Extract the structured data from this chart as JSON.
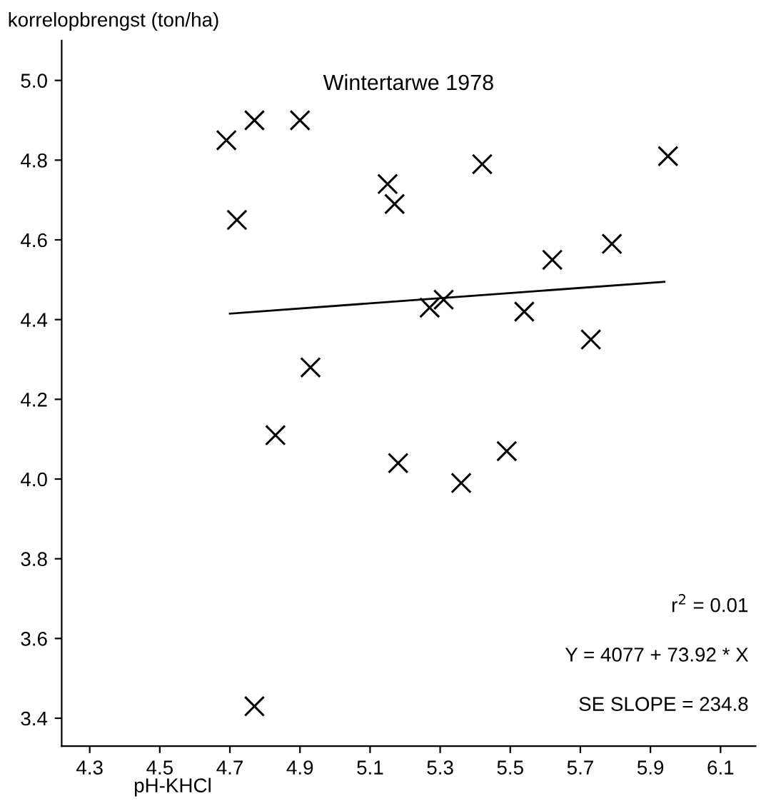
{
  "chart_data": {
    "type": "scatter",
    "title": "Wintertarwe 1978",
    "xlabel": "pH-KHCl",
    "ylabel": "korrelopbrengst (ton/ha)",
    "annotations": [
      "r$^{2}$ = 0.01",
      "Y = 4077 + 73.92 * X",
      "SE SLOPE = 234.8"
    ],
    "series": [
      {
        "type": "scatter",
        "color": "#000000",
        "marker": "cross",
        "x": [
          4.69,
          4.77,
          4.9,
          4.72,
          5.15,
          5.17,
          5.42,
          5.95,
          5.62,
          5.79,
          5.27,
          5.31,
          5.54,
          5.73,
          4.93,
          4.83,
          5.18,
          5.36,
          5.49,
          4.77
        ],
        "values": [
          4.85,
          4.9,
          4.9,
          4.65,
          4.74,
          4.69,
          4.79,
          4.81,
          4.55,
          4.59,
          4.43,
          4.45,
          4.42,
          4.35,
          4.28,
          4.11,
          4.04,
          3.99,
          4.07,
          3.43
        ]
      },
      {
        "type": "line",
        "color": "#000000",
        "marker": "none",
        "line_style": "solid",
        "x": [
          4.7,
          5.94
        ],
        "values": [
          4.415,
          4.495
        ]
      }
    ],
    "xlim": [
      4.22,
      6.2
    ],
    "ylim": [
      3.33,
      5.1
    ],
    "xticks": [
      4.3,
      4.5,
      4.7,
      4.9,
      5.1,
      5.3,
      5.5,
      5.7,
      5.9,
      6.1
    ],
    "yticks": [
      3.4,
      3.6,
      3.8,
      {
        "value": 4,
        "label": "4.0"
      },
      4.2,
      4.4,
      4.6,
      4.8,
      {
        "value": 5,
        "label": "5.0"
      }
    ],
    "grid": false,
    "legend": false
  }
}
